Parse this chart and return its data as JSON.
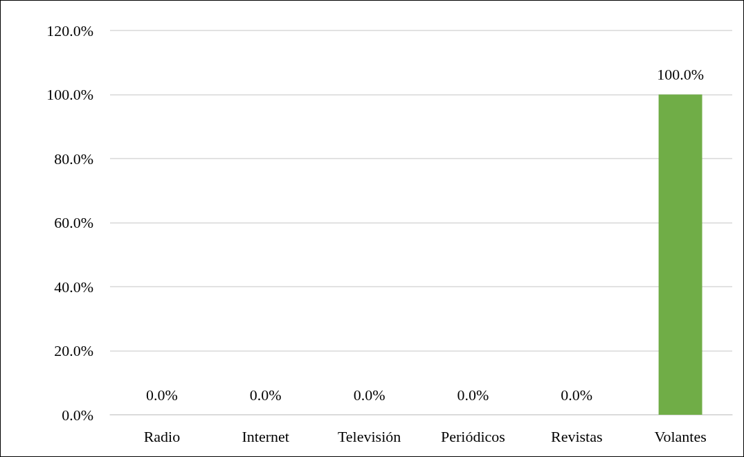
{
  "chart_data": {
    "type": "bar",
    "categories": [
      "Radio",
      "Internet",
      "Televisión",
      "Periódicos",
      "Revistas",
      "Volantes"
    ],
    "values": [
      0,
      0,
      0,
      0,
      0,
      100
    ],
    "value_labels": [
      "0.0%",
      "0.0%",
      "0.0%",
      "0.0%",
      "0.0%",
      "100.0%"
    ],
    "color": "#70ad47",
    "ylim": [
      0,
      120
    ],
    "yticks": [
      {
        "value": 0,
        "label": "0.0%"
      },
      {
        "value": 20,
        "label": "20.0%"
      },
      {
        "value": 40,
        "label": "40.0%"
      },
      {
        "value": 60,
        "label": "60.0%"
      },
      {
        "value": 80,
        "label": "80.0%"
      },
      {
        "value": 100,
        "label": "100.0%"
      },
      {
        "value": 120,
        "label": "120.0%"
      }
    ],
    "grid": "y"
  }
}
